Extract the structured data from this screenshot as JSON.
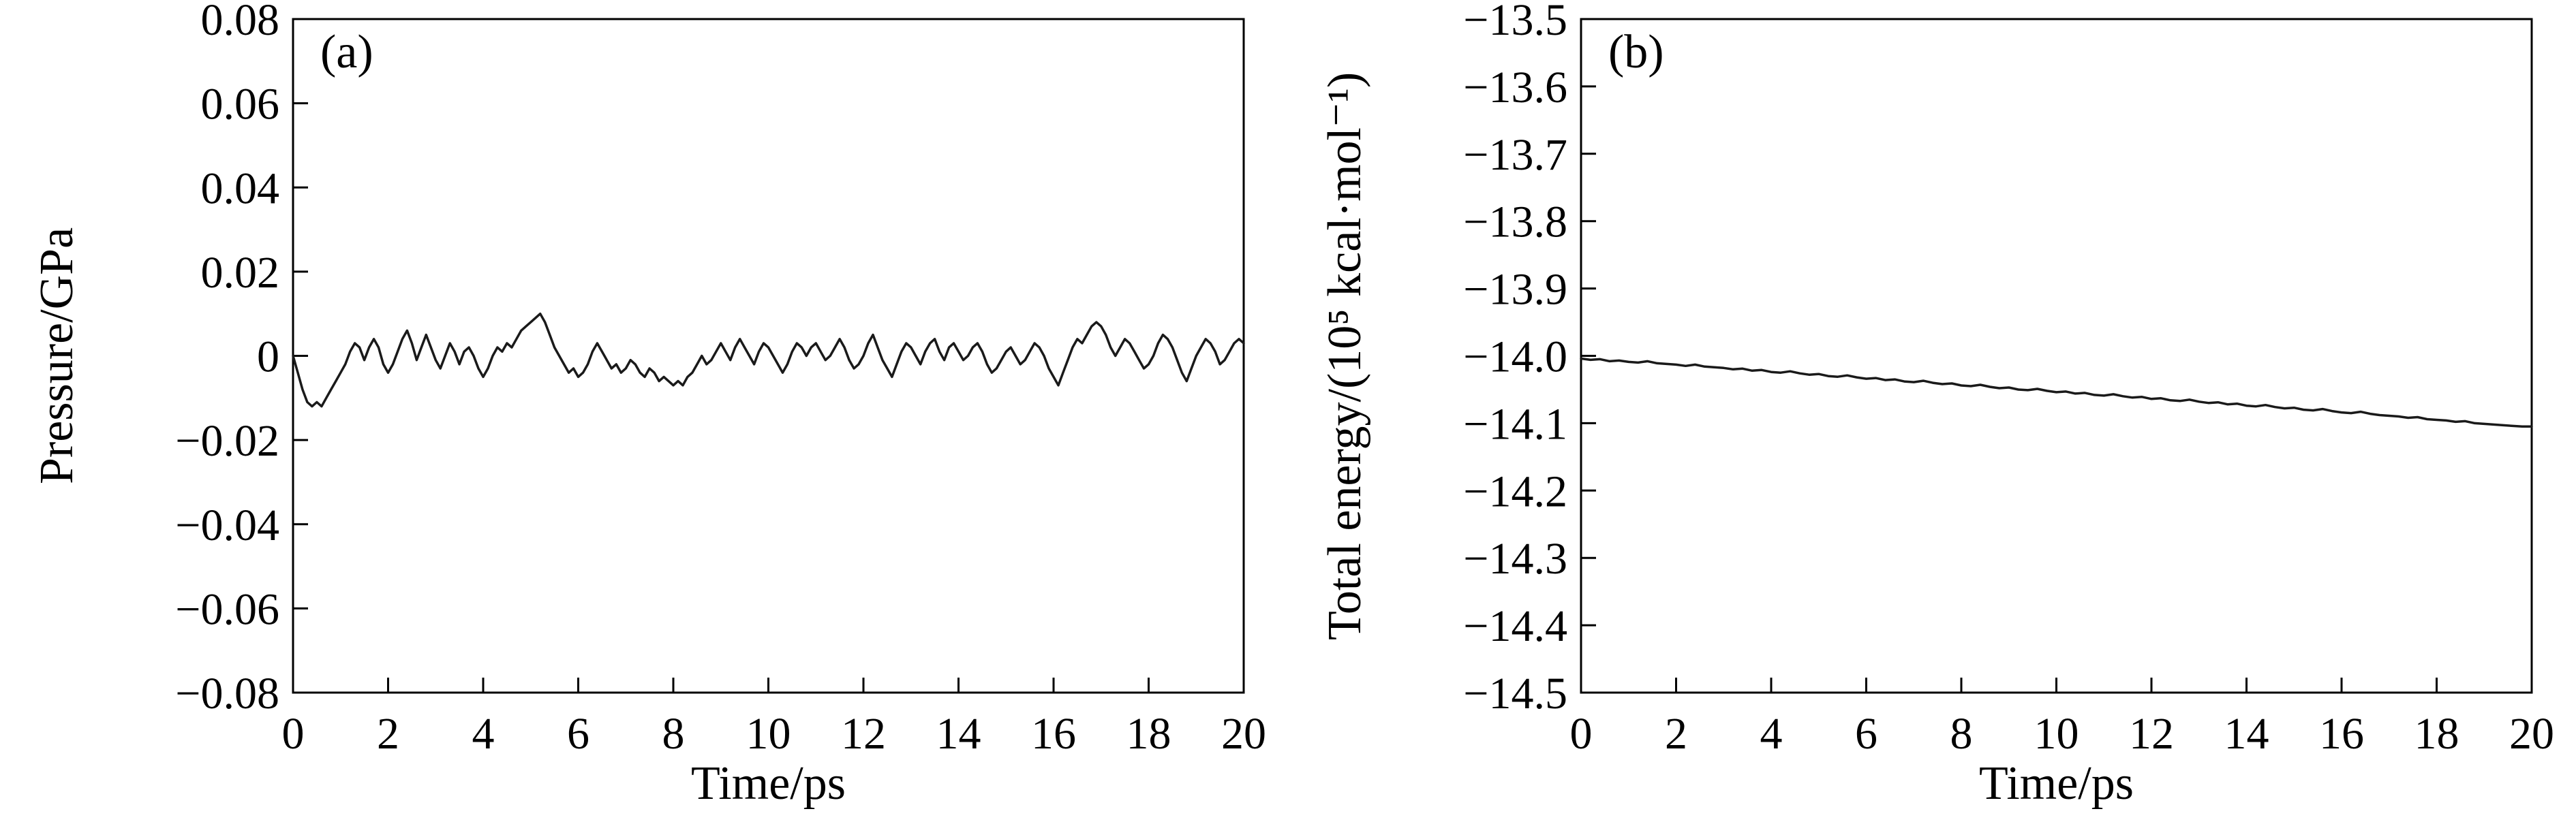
{
  "page": {
    "background": "#ffffff",
    "axis_color": "#000000",
    "line_color": "#1a1a1a"
  },
  "chart_data": [
    {
      "id": "a",
      "type": "line",
      "panel_label": "(a)",
      "title": "",
      "xlabel": "Time/ps",
      "ylabel": "Pressure/GPa",
      "xlim": [
        0,
        20
      ],
      "ylim": [
        -0.08,
        0.08
      ],
      "grid": false,
      "legend": "none",
      "xticks": [
        0,
        2,
        4,
        6,
        8,
        10,
        12,
        14,
        16,
        18,
        20
      ],
      "xtick_labels": [
        "0",
        "2",
        "4",
        "6",
        "8",
        "10",
        "12",
        "14",
        "16",
        "18",
        "20"
      ],
      "yticks": [
        0.08,
        0.06,
        0.04,
        0.02,
        0,
        -0.02,
        -0.04,
        -0.06,
        -0.08
      ],
      "ytick_labels": [
        "0.08",
        "0.06",
        "0.04",
        "0.02",
        "0",
        "−0.02",
        "−0.04",
        "−0.06",
        "−0.08"
      ],
      "x_start": 0,
      "x_step": 0.1,
      "values": [
        0.0,
        -0.004,
        -0.008,
        -0.011,
        -0.012,
        -0.011,
        -0.012,
        -0.01,
        -0.008,
        -0.006,
        -0.004,
        -0.002,
        0.001,
        0.003,
        0.002,
        -0.001,
        0.002,
        0.004,
        0.002,
        -0.002,
        -0.004,
        -0.002,
        0.001,
        0.004,
        0.006,
        0.003,
        -0.001,
        0.002,
        0.005,
        0.002,
        -0.001,
        -0.003,
        0.0,
        0.003,
        0.001,
        -0.002,
        0.001,
        0.002,
        0.0,
        -0.003,
        -0.005,
        -0.003,
        0.0,
        0.002,
        0.001,
        0.003,
        0.002,
        0.004,
        0.006,
        0.007,
        0.008,
        0.009,
        0.01,
        0.008,
        0.005,
        0.002,
        0.0,
        -0.002,
        -0.004,
        -0.003,
        -0.005,
        -0.004,
        -0.002,
        0.001,
        0.003,
        0.001,
        -0.001,
        -0.003,
        -0.002,
        -0.004,
        -0.003,
        -0.001,
        -0.002,
        -0.004,
        -0.005,
        -0.003,
        -0.004,
        -0.006,
        -0.005,
        -0.006,
        -0.007,
        -0.006,
        -0.007,
        -0.005,
        -0.004,
        -0.002,
        0.0,
        -0.002,
        -0.001,
        0.001,
        0.003,
        0.001,
        -0.001,
        0.002,
        0.004,
        0.002,
        0.0,
        -0.002,
        0.001,
        0.003,
        0.002,
        0.0,
        -0.002,
        -0.004,
        -0.002,
        0.001,
        0.003,
        0.002,
        0.0,
        0.002,
        0.003,
        0.001,
        -0.001,
        0.0,
        0.002,
        0.004,
        0.002,
        -0.001,
        -0.003,
        -0.002,
        0.0,
        0.003,
        0.005,
        0.002,
        -0.001,
        -0.003,
        -0.005,
        -0.002,
        0.001,
        0.003,
        0.002,
        0.0,
        -0.002,
        0.001,
        0.003,
        0.004,
        0.001,
        -0.001,
        0.002,
        0.003,
        0.001,
        -0.001,
        0.0,
        0.002,
        0.003,
        0.001,
        -0.002,
        -0.004,
        -0.003,
        -0.001,
        0.001,
        0.002,
        0.0,
        -0.002,
        -0.001,
        0.001,
        0.003,
        0.002,
        0.0,
        -0.003,
        -0.005,
        -0.007,
        -0.004,
        -0.001,
        0.002,
        0.004,
        0.003,
        0.005,
        0.007,
        0.008,
        0.007,
        0.005,
        0.002,
        0.0,
        0.002,
        0.004,
        0.003,
        0.001,
        -0.001,
        -0.003,
        -0.002,
        0.0,
        0.003,
        0.005,
        0.004,
        0.002,
        -0.001,
        -0.004,
        -0.006,
        -0.003,
        0.0,
        0.002,
        0.004,
        0.003,
        0.001,
        -0.002,
        -0.001,
        0.001,
        0.003,
        0.004,
        0.003
      ]
    },
    {
      "id": "b",
      "type": "line",
      "panel_label": "(b)",
      "title": "",
      "xlabel": "Time/ps",
      "ylabel": "Total energy/(10⁵ kcal·mol⁻¹)",
      "xlim": [
        0,
        20
      ],
      "ylim": [
        -14.5,
        -13.5
      ],
      "grid": false,
      "legend": "none",
      "xticks": [
        0,
        2,
        4,
        6,
        8,
        10,
        12,
        14,
        16,
        18,
        20
      ],
      "xtick_labels": [
        "0",
        "2",
        "4",
        "6",
        "8",
        "10",
        "12",
        "14",
        "16",
        "18",
        "20"
      ],
      "yticks": [
        -13.5,
        -13.6,
        -13.7,
        -13.8,
        -13.9,
        -14.0,
        -14.1,
        -14.2,
        -14.3,
        -14.4,
        -14.5
      ],
      "ytick_labels": [
        "−13.5",
        "−13.6",
        "−13.7",
        "−13.8",
        "−13.9",
        "−14.0",
        "−14.1",
        "−14.2",
        "−14.3",
        "−14.4",
        "−14.5"
      ],
      "x_start": 0,
      "x_step": 0.2,
      "values": [
        -14.004,
        -14.006,
        -14.005,
        -14.008,
        -14.007,
        -14.009,
        -14.01,
        -14.008,
        -14.011,
        -14.012,
        -14.013,
        -14.015,
        -14.013,
        -14.016,
        -14.017,
        -14.018,
        -14.02,
        -14.019,
        -14.022,
        -14.021,
        -14.024,
        -14.025,
        -14.023,
        -14.026,
        -14.028,
        -14.027,
        -14.03,
        -14.031,
        -14.029,
        -14.032,
        -14.034,
        -14.033,
        -14.036,
        -14.035,
        -14.038,
        -14.039,
        -14.037,
        -14.04,
        -14.042,
        -14.041,
        -14.044,
        -14.045,
        -14.043,
        -14.046,
        -14.048,
        -14.047,
        -14.05,
        -14.051,
        -14.049,
        -14.052,
        -14.054,
        -14.053,
        -14.056,
        -14.055,
        -14.058,
        -14.059,
        -14.057,
        -14.06,
        -14.062,
        -14.061,
        -14.064,
        -14.063,
        -14.066,
        -14.067,
        -14.065,
        -14.068,
        -14.07,
        -14.069,
        -14.072,
        -14.071,
        -14.074,
        -14.075,
        -14.073,
        -14.076,
        -14.078,
        -14.077,
        -14.08,
        -14.081,
        -14.079,
        -14.082,
        -14.084,
        -14.085,
        -14.083,
        -14.086,
        -14.088,
        -14.089,
        -14.09,
        -14.092,
        -14.091,
        -14.094,
        -14.095,
        -14.096,
        -14.098,
        -14.097,
        -14.1,
        -14.101,
        -14.102,
        -14.103,
        -14.104,
        -14.105,
        -14.105
      ]
    }
  ]
}
